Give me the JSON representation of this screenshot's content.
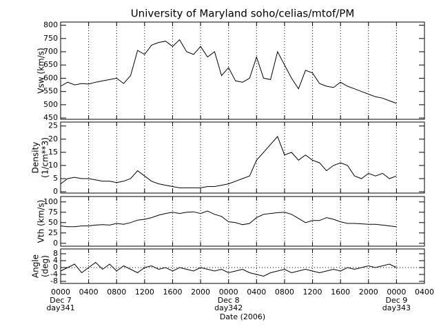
{
  "chart_data": [
    {
      "type": "line",
      "title": "University of Maryland  soho/celias/mtof/PM",
      "ylabel": [
        "Vsw (km/s)"
      ],
      "xlim": [
        0,
        52
      ],
      "xticks": [
        0,
        4,
        8,
        12,
        16,
        20,
        24,
        28,
        32,
        36,
        40,
        44,
        48,
        52
      ],
      "ylim": [
        445,
        812
      ],
      "yticks": [
        450,
        500,
        550,
        600,
        650,
        700,
        750,
        800
      ],
      "grid": true,
      "color": "#000000",
      "x": [
        0,
        1,
        2,
        3,
        4,
        5,
        6,
        7,
        8,
        9,
        10,
        11,
        12,
        13,
        14,
        15,
        16,
        17,
        18,
        19,
        20,
        21,
        22,
        23,
        24,
        25,
        26,
        27,
        28,
        29,
        30,
        31,
        32,
        33,
        34,
        35,
        36,
        37,
        38,
        39,
        40,
        41,
        42,
        43,
        44,
        45,
        46,
        47,
        48
      ],
      "values": [
        570,
        585,
        575,
        580,
        578,
        585,
        590,
        595,
        600,
        580,
        610,
        705,
        690,
        725,
        735,
        740,
        720,
        745,
        700,
        690,
        720,
        680,
        700,
        610,
        640,
        590,
        585,
        600,
        680,
        600,
        595,
        700,
        650,
        600,
        560,
        630,
        620,
        580,
        570,
        565,
        585,
        570,
        560,
        550,
        540,
        530,
        525,
        515,
        505
      ]
    },
    {
      "type": "line",
      "ylabel": [
        "Density",
        "(1/cm**3)"
      ],
      "xlim": [
        0,
        52
      ],
      "xticks": [
        0,
        4,
        8,
        12,
        16,
        20,
        24,
        28,
        32,
        36,
        40,
        44,
        48,
        52
      ],
      "ylim": [
        -0.5,
        26.5
      ],
      "yticks": [
        0,
        5,
        10,
        15,
        20,
        25
      ],
      "grid": true,
      "color": "#000000",
      "x": [
        0,
        1,
        2,
        3,
        4,
        5,
        6,
        7,
        8,
        9,
        10,
        11,
        12,
        13,
        14,
        15,
        16,
        17,
        18,
        19,
        20,
        21,
        22,
        23,
        24,
        25,
        26,
        27,
        28,
        29,
        30,
        31,
        32,
        33,
        34,
        35,
        36,
        37,
        38,
        39,
        40,
        41,
        42,
        43,
        44,
        45,
        46,
        47,
        48
      ],
      "values": [
        3,
        5,
        5.5,
        5,
        5,
        4.5,
        4,
        4,
        3.5,
        4,
        5,
        8,
        6,
        4,
        3,
        2.5,
        2,
        1.5,
        1.5,
        1.5,
        1.5,
        2,
        2,
        2.5,
        3,
        4,
        5,
        6,
        12,
        15,
        18,
        21,
        14,
        15,
        12,
        14,
        12,
        11,
        8,
        10,
        11,
        10,
        6,
        5,
        7,
        6,
        7,
        5,
        6
      ]
    },
    {
      "type": "line",
      "ylabel": [
        "Vth (km/s)"
      ],
      "xlim": [
        0,
        52
      ],
      "xticks": [
        0,
        4,
        8,
        12,
        16,
        20,
        24,
        28,
        32,
        36,
        40,
        44,
        48,
        52
      ],
      "ylim": [
        -7,
        113
      ],
      "yticks": [
        0,
        25,
        50,
        75,
        100
      ],
      "grid": true,
      "color": "#000000",
      "x": [
        0,
        1,
        2,
        3,
        4,
        5,
        6,
        7,
        8,
        9,
        10,
        11,
        12,
        13,
        14,
        15,
        16,
        17,
        18,
        19,
        20,
        21,
        22,
        23,
        24,
        25,
        26,
        27,
        28,
        29,
        30,
        31,
        32,
        33,
        34,
        35,
        36,
        37,
        38,
        39,
        40,
        41,
        42,
        43,
        44,
        45,
        46,
        47,
        48
      ],
      "values": [
        42,
        40,
        40,
        42,
        42,
        44,
        45,
        44,
        48,
        46,
        50,
        56,
        58,
        62,
        68,
        72,
        75,
        72,
        75,
        76,
        72,
        78,
        70,
        65,
        52,
        50,
        45,
        48,
        62,
        70,
        72,
        74,
        75,
        70,
        60,
        50,
        55,
        55,
        62,
        58,
        52,
        48,
        48,
        47,
        46,
        46,
        44,
        42,
        40
      ]
    },
    {
      "type": "line",
      "ylabel": [
        "Angle",
        "(deg)"
      ],
      "xlabel": "Date (2006)",
      "xlim": [
        0,
        52
      ],
      "xticks": [
        {
          "value": 0,
          "label": "0000"
        },
        {
          "value": 4,
          "label": "0400"
        },
        {
          "value": 8,
          "label": "0800"
        },
        {
          "value": 12,
          "label": "1200"
        },
        {
          "value": 16,
          "label": "1600"
        },
        {
          "value": 20,
          "label": "2000"
        },
        {
          "value": 24,
          "label": "0000"
        },
        {
          "value": 28,
          "label": "0400"
        },
        {
          "value": 32,
          "label": "0800"
        },
        {
          "value": 36,
          "label": "1200"
        },
        {
          "value": 40,
          "label": "1600"
        },
        {
          "value": 44,
          "label": "2000"
        },
        {
          "value": 48,
          "label": "0000"
        },
        {
          "value": 52,
          "label": "0400"
        }
      ],
      "xtick_sublabels": [
        {
          "value": 0,
          "lines": [
            "Dec 7",
            "day341"
          ]
        },
        {
          "value": 24,
          "lines": [
            "Dec 8",
            "day342"
          ]
        },
        {
          "value": 48,
          "lines": [
            "Dec 9",
            "day343"
          ]
        }
      ],
      "ylim": [
        -9.2,
        10.8
      ],
      "yticks": [
        -8,
        -4,
        0,
        4,
        8
      ],
      "grid": true,
      "hline": 0,
      "color": "#000000",
      "x": [
        0,
        1,
        2,
        3,
        4,
        5,
        6,
        7,
        8,
        9,
        10,
        11,
        12,
        13,
        14,
        15,
        16,
        17,
        18,
        19,
        20,
        21,
        22,
        23,
        24,
        25,
        26,
        27,
        28,
        29,
        30,
        31,
        32,
        33,
        34,
        35,
        36,
        37,
        38,
        39,
        40,
        41,
        42,
        43,
        44,
        45,
        46,
        47,
        48
      ],
      "values": [
        -2,
        0,
        2,
        -3,
        0,
        3,
        -1,
        2,
        -2,
        1,
        -1,
        -3,
        0,
        1,
        -1,
        0,
        -2,
        0,
        -1,
        -2,
        0,
        -1,
        -2,
        -1,
        -3,
        -2,
        -1,
        -3,
        -4,
        -5,
        -3,
        -2,
        -1,
        -3,
        -2,
        -1,
        -2,
        -3,
        -2,
        -1,
        -2,
        0,
        -1,
        0,
        1,
        0,
        1,
        2,
        0
      ]
    }
  ]
}
